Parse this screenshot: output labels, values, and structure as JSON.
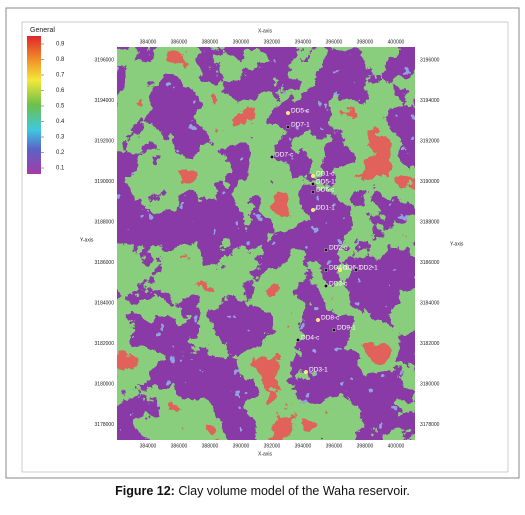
{
  "figure": {
    "legend": {
      "title": "General",
      "ticks": [
        "0.9",
        "0.8",
        "0.7",
        "0.6",
        "0.5",
        "0.4",
        "0.3",
        "0.2",
        "0.1"
      ]
    },
    "x_axis_label": "X-axis",
    "y_axis_label": "Y-axis",
    "x_ticks": [
      "384000",
      "386000",
      "388000",
      "390000",
      "392000",
      "394000",
      "396000",
      "398000",
      "400000"
    ],
    "y_ticks": [
      "3196000",
      "3194000",
      "3192000",
      "3190000",
      "3188000",
      "3186000",
      "3184000",
      "3182000",
      "3180000",
      "3178000"
    ],
    "wells": [
      "DD5-c",
      "DD7-1",
      "DD7-c",
      "DD1-c",
      "DD5-1",
      "DD6-c",
      "DD1-1",
      "DD2-c",
      "DD4-1",
      "DD6-1",
      "DD3-c",
      "DD2-1",
      "DD8-c",
      "DD4-c",
      "DD9-1",
      "DD3-1"
    ]
  },
  "caption": {
    "label": "Figure 12:",
    "text": " Clay volume model of the Waha reservoir."
  }
}
